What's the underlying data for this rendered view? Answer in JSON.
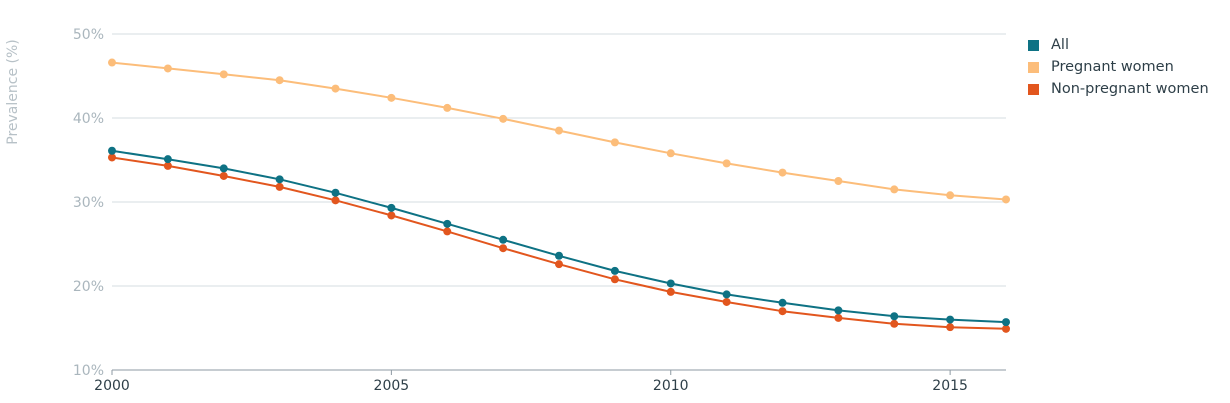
{
  "chart_data": {
    "type": "line",
    "title": "",
    "xlabel": "",
    "ylabel": "Prevalence (%)",
    "x": [
      2000,
      2001,
      2002,
      2003,
      2004,
      2005,
      2006,
      2007,
      2008,
      2009,
      2010,
      2011,
      2012,
      2013,
      2014,
      2015,
      2016
    ],
    "xlim": [
      2000,
      2016
    ],
    "ylim": [
      10,
      50
    ],
    "x_ticks": [
      2000,
      2005,
      2010,
      2015
    ],
    "x_tick_labels": [
      "2000",
      "2005",
      "2010",
      "2015"
    ],
    "y_ticks": [
      10,
      20,
      30,
      40,
      50
    ],
    "y_tick_labels": [
      "10%",
      "20%",
      "30%",
      "40%",
      "50%"
    ],
    "grid": "horizontal",
    "legend_position": "top-right",
    "series": [
      {
        "name": "All",
        "color": "#0e7284",
        "values": [
          36.1,
          35.1,
          34.0,
          32.7,
          31.1,
          29.3,
          27.4,
          25.5,
          23.6,
          21.8,
          20.3,
          19.0,
          18.0,
          17.1,
          16.4,
          16.0,
          15.7
        ]
      },
      {
        "name": "Pregnant women",
        "color": "#fcbd7a",
        "values": [
          46.6,
          45.9,
          45.2,
          44.5,
          43.5,
          42.4,
          41.2,
          39.9,
          38.5,
          37.1,
          35.8,
          34.6,
          33.5,
          32.5,
          31.5,
          30.8,
          30.3
        ]
      },
      {
        "name": "Non-pregnant women",
        "color": "#e2561e",
        "values": [
          35.3,
          34.3,
          33.1,
          31.8,
          30.2,
          28.4,
          26.5,
          24.5,
          22.6,
          20.8,
          19.3,
          18.1,
          17.0,
          16.2,
          15.5,
          15.1,
          14.9
        ]
      }
    ]
  }
}
